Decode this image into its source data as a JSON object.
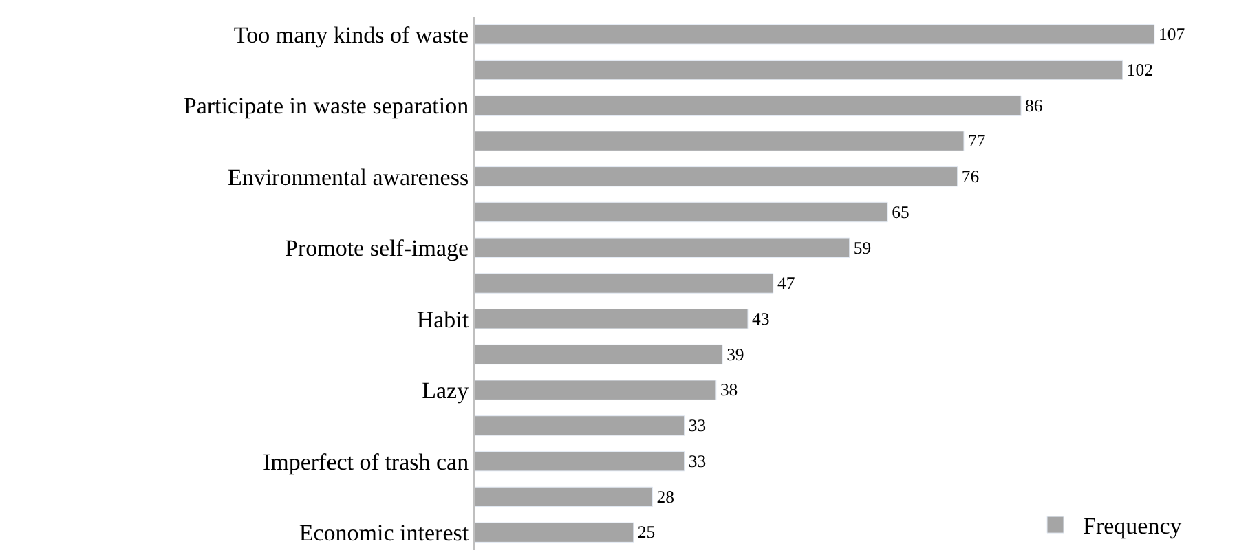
{
  "chart_data": {
    "type": "bar",
    "orientation": "horizontal",
    "categories": [
      "Too many kinds of waste",
      null,
      "Participate in waste separation",
      null,
      "Environmental awareness",
      null,
      "Promote self-image",
      null,
      "Habit",
      null,
      "Lazy",
      null,
      "Imperfect of trash can",
      null,
      "Economic interest"
    ],
    "series": [
      {
        "name": "Frequency",
        "color": "#a5a5a5",
        "values": [
          107,
          102,
          86,
          77,
          76,
          65,
          59,
          47,
          43,
          39,
          38,
          33,
          33,
          28,
          25
        ]
      }
    ],
    "data_labels": true,
    "legend": "bottom right",
    "tick_labels": "y"
  }
}
